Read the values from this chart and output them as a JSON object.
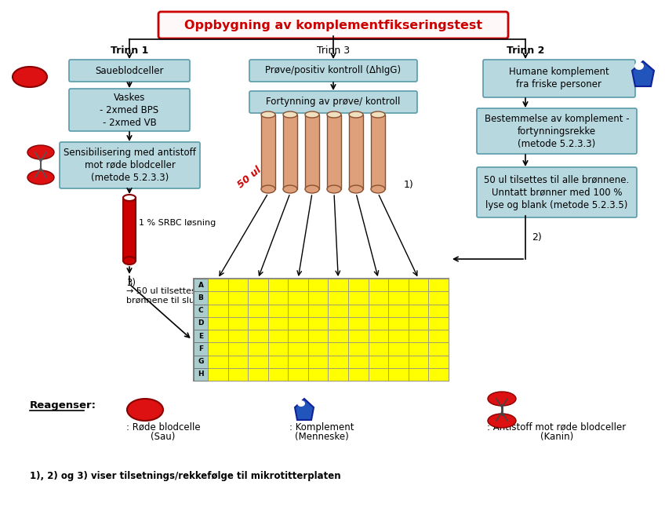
{
  "title": "Oppbygning av komplementfikseringstest",
  "title_color": "#CC0000",
  "bg_color": "#ffffff",
  "box_fill": "#b8d8e0",
  "box_edge": "#5a9aaa",
  "trinn1_label": "Trinn 1",
  "trinn2_label": "Trinn 2",
  "trinn3_label": "Trinn 3",
  "box1_text": "Saueblodceller",
  "box2_text": "Vaskes\n- 2xmed BPS\n- 2xmed VB",
  "box3_text": "Sensibilisering med antistoff\nmot røde blodceller\n(metode 5.2.3.3)",
  "box4_text": "1 % SRBC løsning",
  "box5a_text": "3)",
  "box5b_text": "50 ul tilsettes til alle\nbrønnene til slutt",
  "box6_text": "Prøve/positiv kontroll (ΔhIgG)",
  "box7_text": "Fortynning av prøve/ kontroll",
  "box8_text": "Humane komplement\nfra friske personer",
  "box9_text": "Bestemmelse av komplement -\nfortynningsrekke\n(metode 5.2.3.3)",
  "box10_text": "50 ul tilsettes til alle brønnene.\nUnntatt brønner med 100 %\nlyse og blank (metode 5.2.3.5)",
  "reagenser_label": "Reagenser",
  "label1a": ": Røde blodcelle",
  "label1b": "(Sau)",
  "label2a": ": Komplement",
  "label2b": "(Menneske)",
  "label3a": ": Antistoff mot røde blodceller",
  "label3b": "(Kanin)",
  "footer": "1), 2) og 3) viser tilsetnings/rekkefølge til mikrotitterplaten",
  "plate_rows": [
    "A",
    "B",
    "C",
    "D",
    "E",
    "F",
    "G",
    "H"
  ],
  "plate_cols": 12,
  "plate_yellow": "#ffff00",
  "tube_fill": "#dda07a",
  "tube_stroke": "#8b5030",
  "blood_color": "#cc0000",
  "blood_stroke": "#880000",
  "arrow_label_50ul": "50 ul",
  "label_1": "1)",
  "label_2": "2)",
  "label_3": "3)"
}
